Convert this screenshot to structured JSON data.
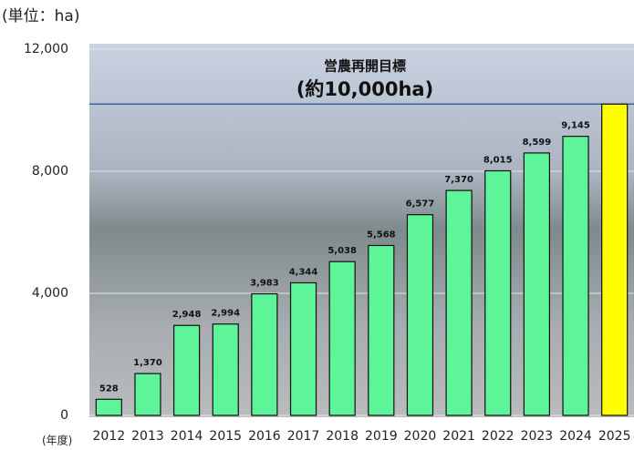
{
  "chart_data": {
    "type": "bar",
    "unit_label": "(単位：ha)",
    "x_label": "(年度)",
    "annotation_title": "営農再開目標",
    "annotation_subtitle": "(約10,000ha)",
    "categories": [
      "2012",
      "2013",
      "2014",
      "2015",
      "2016",
      "2017",
      "2018",
      "2019",
      "2020",
      "2021",
      "2022",
      "2023",
      "2024",
      "2025"
    ],
    "values": [
      528,
      1370,
      2948,
      2994,
      3983,
      4344,
      5038,
      5568,
      6577,
      7370,
      8015,
      8599,
      9145,
      10200
    ],
    "value_labels": [
      "528",
      "1,370",
      "2,948",
      "2,994",
      "3,983",
      "4,344",
      "5,038",
      "5,568",
      "6,577",
      "7,370",
      "8,015",
      "8,599",
      "9,145",
      null
    ],
    "colors": [
      "#5ef59a",
      "#5ef59a",
      "#5ef59a",
      "#5ef59a",
      "#5ef59a",
      "#5ef59a",
      "#5ef59a",
      "#5ef59a",
      "#5ef59a",
      "#5ef59a",
      "#5ef59a",
      "#5ef59a",
      "#5ef59a",
      "#ffff00"
    ],
    "ylim": [
      0,
      12000
    ],
    "yticks": [
      0,
      {
        "value": 4000,
        "label": "4,000"
      },
      {
        "value": 8000,
        "label": "8,000"
      },
      {
        "value": 12000,
        "label": "12,000"
      }
    ],
    "grid": true
  }
}
